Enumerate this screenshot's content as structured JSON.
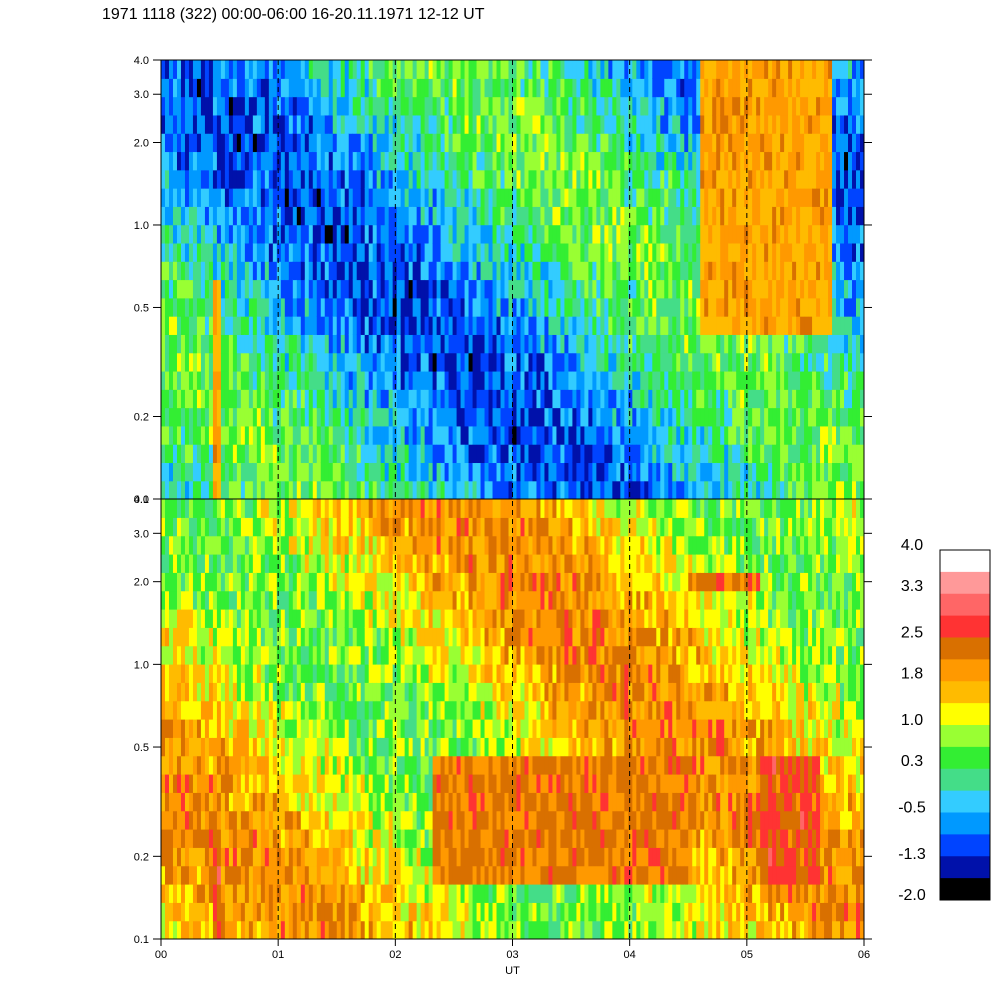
{
  "title": "1971 1118 (322) 00:00-06:00 16-20.11.1971  12-12 UT",
  "chart_data": {
    "type": "heatmap",
    "title": "1971 1118 (322) 00:00-06:00 16-20.11.1971  12-12 UT",
    "xlabel": "UT",
    "x_ticks": [
      "00",
      "01",
      "02",
      "03",
      "04",
      "05",
      "06"
    ],
    "x_range": [
      0,
      6
    ],
    "y_scale": "log",
    "y_range": [
      0.1,
      4.0
    ],
    "y_ticks": [
      {
        "value": 0.1,
        "label": "0.1"
      },
      {
        "value": 0.2,
        "label": "0.2"
      },
      {
        "value": 0.5,
        "label": "0.5"
      },
      {
        "value": 1.0,
        "label": "1.0"
      },
      {
        "value": 2.0,
        "label": "2.0"
      },
      {
        "value": 3.0,
        "label": "3.0"
      },
      {
        "value": 4.0,
        "label": "4.0"
      }
    ],
    "vertical_dashed_lines_at": [
      1,
      2,
      3,
      4,
      5
    ],
    "panels": [
      {
        "name": "upper",
        "dominant_level_range": [
          -1.3,
          1.0
        ],
        "features": [
          {
            "x_start": 0.42,
            "x_end": 0.5,
            "y_max": 0.6,
            "level": 1.8
          },
          {
            "x_start": 4.6,
            "x_end": 5.7,
            "y_min": 0.4,
            "y_max": 4.0,
            "level": 1.8
          }
        ]
      },
      {
        "name": "lower",
        "dominant_level_range": [
          0.3,
          2.5
        ],
        "features": [
          {
            "x_start": 0.42,
            "x_end": 0.5,
            "y_max": 0.35,
            "level": 2.5
          },
          {
            "x_start": 2.3,
            "x_end": 4.5,
            "y_min": 0.15,
            "y_max": 0.5,
            "level": 2.2
          },
          {
            "x_start": 5.1,
            "x_end": 5.6,
            "y_min": 0.15,
            "y_max": 0.5,
            "level": 2.5
          },
          {
            "x_start": 4.5,
            "x_end": 5.1,
            "y_min": 1.8,
            "y_max": 2.1,
            "level": 2.2
          }
        ]
      }
    ],
    "colorbar": {
      "labels": [
        "4.0",
        "3.3",
        "2.5",
        "1.8",
        "1.0",
        "0.3",
        "-0.5",
        "-1.3",
        "-2.0"
      ],
      "label_values": [
        4.0,
        3.3,
        2.5,
        1.8,
        1.0,
        0.3,
        -0.5,
        -1.3,
        -2.0
      ],
      "colors_top_to_bottom": [
        "#ffffff",
        "#ff9999",
        "#ff6666",
        "#ff3333",
        "#d97000",
        "#ff9900",
        "#ffbb00",
        "#ffff00",
        "#99ff33",
        "#33ee33",
        "#44dd88",
        "#33ccff",
        "#0099ff",
        "#0044ff",
        "#0011aa",
        "#000000"
      ],
      "level_min": -2.0,
      "level_max": 4.0
    }
  }
}
